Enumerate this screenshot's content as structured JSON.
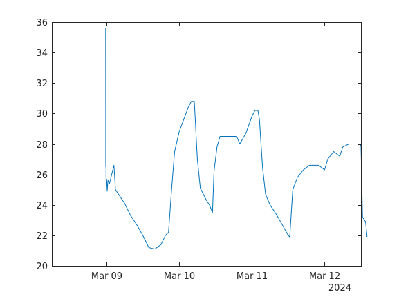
{
  "chart_data": {
    "type": "line",
    "title": "",
    "xlabel": "",
    "ylabel": "",
    "x_tick_labels": [
      "Mar 09",
      "Mar 10",
      "Mar 11",
      "Mar 12"
    ],
    "x_secondary_label": "2024",
    "xlim": [
      "2024-03-08T06:00",
      "2024-03-12T12:00"
    ],
    "ylim": [
      20,
      36
    ],
    "y_ticks": [
      20,
      22,
      24,
      26,
      28,
      30,
      32,
      34,
      36
    ],
    "grid": false,
    "legend": "none",
    "series": [
      {
        "color": "#0072BD",
        "points": [
          [
            "2024-03-08T23:45",
            35.6
          ],
          [
            "2024-03-08T23:48",
            26.5
          ],
          [
            "2024-03-08T23:50",
            30.2
          ],
          [
            "2024-03-08T23:52",
            26.0
          ],
          [
            "2024-03-08T23:55",
            25.4
          ],
          [
            "2024-03-09T00:05",
            25.7
          ],
          [
            "2024-03-09T00:15",
            24.9
          ],
          [
            "2024-03-09T00:30",
            25.6
          ],
          [
            "2024-03-09T01:00",
            25.4
          ],
          [
            "2024-03-09T02:30",
            26.6
          ],
          [
            "2024-03-09T03:00",
            25.0
          ],
          [
            "2024-03-09T04:00",
            24.7
          ],
          [
            "2024-03-09T06:00",
            24.1
          ],
          [
            "2024-03-09T08:00",
            23.3
          ],
          [
            "2024-03-09T10:00",
            22.7
          ],
          [
            "2024-03-09T12:00",
            22.0
          ],
          [
            "2024-03-09T14:00",
            21.2
          ],
          [
            "2024-03-09T16:00",
            21.1
          ],
          [
            "2024-03-09T18:00",
            21.4
          ],
          [
            "2024-03-09T19:30",
            22.0
          ],
          [
            "2024-03-09T20:30",
            22.2
          ],
          [
            "2024-03-09T21:30",
            25.0
          ],
          [
            "2024-03-09T22:30",
            27.5
          ],
          [
            "2024-03-10T00:00",
            28.8
          ],
          [
            "2024-03-10T01:30",
            29.6
          ],
          [
            "2024-03-10T03:00",
            30.4
          ],
          [
            "2024-03-10T04:00",
            30.8
          ],
          [
            "2024-03-10T05:00",
            30.8
          ],
          [
            "2024-03-10T06:00",
            27.0
          ],
          [
            "2024-03-10T07:00",
            25.1
          ],
          [
            "2024-03-10T09:00",
            24.3
          ],
          [
            "2024-03-10T10:00",
            24.0
          ],
          [
            "2024-03-10T11:00",
            23.5
          ],
          [
            "2024-03-10T11:30",
            26.2
          ],
          [
            "2024-03-10T12:30",
            27.8
          ],
          [
            "2024-03-10T13:30",
            28.5
          ],
          [
            "2024-03-10T16:00",
            28.5
          ],
          [
            "2024-03-10T19:00",
            28.5
          ],
          [
            "2024-03-10T20:00",
            28.0
          ],
          [
            "2024-03-10T22:00",
            28.7
          ],
          [
            "2024-03-11T00:00",
            29.8
          ],
          [
            "2024-03-11T01:00",
            30.2
          ],
          [
            "2024-03-11T02:00",
            30.2
          ],
          [
            "2024-03-11T02:30",
            29.6
          ],
          [
            "2024-03-11T03:30",
            26.5
          ],
          [
            "2024-03-11T04:30",
            24.7
          ],
          [
            "2024-03-11T06:00",
            24.0
          ],
          [
            "2024-03-11T08:00",
            23.4
          ],
          [
            "2024-03-11T10:00",
            22.7
          ],
          [
            "2024-03-11T12:00",
            22.0
          ],
          [
            "2024-03-11T12:30",
            21.9
          ],
          [
            "2024-03-11T13:30",
            25.0
          ],
          [
            "2024-03-11T15:00",
            25.8
          ],
          [
            "2024-03-11T17:00",
            26.3
          ],
          [
            "2024-03-11T19:00",
            26.6
          ],
          [
            "2024-03-11T22:00",
            26.6
          ],
          [
            "2024-03-12T00:00",
            26.3
          ],
          [
            "2024-03-12T01:00",
            27.0
          ],
          [
            "2024-03-12T03:00",
            27.5
          ],
          [
            "2024-03-12T05:00",
            27.2
          ],
          [
            "2024-03-12T06:00",
            27.8
          ],
          [
            "2024-03-12T08:00",
            28.0
          ],
          [
            "2024-03-12T10:00",
            28.0
          ],
          [
            "2024-03-12T11:00",
            28.0
          ],
          [
            "2024-03-12T12:00",
            27.9
          ],
          [
            "2024-03-12T12:30",
            23.2
          ],
          [
            "2024-03-12T13:30",
            22.9
          ],
          [
            "2024-03-12T14:00",
            21.9
          ]
        ]
      }
    ]
  }
}
